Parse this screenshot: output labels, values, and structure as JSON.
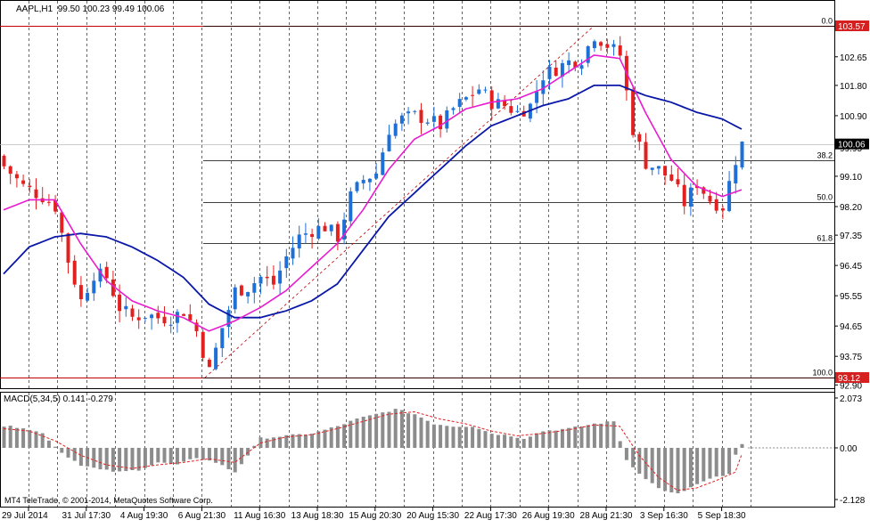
{
  "header": {
    "symbol": "AAPL,H1",
    "ohlc": "99.50 100.23 99.49 100.06"
  },
  "macd_header": "MACD(5,34,5) 0.141 -0.279",
  "copyright": "MT4 TeleTrade, © 2001-2014, MetaQuotes Software Corp.",
  "colors": {
    "background": "#ffffff",
    "candle_up": "#1e6fd6",
    "candle_down": "#e32020",
    "ma_fast": "#e81ccf",
    "ma_slow": "#0a18a8",
    "fibo": "#000000",
    "fibo_extreme": "#c00000",
    "grid": "#000000",
    "macd_hist": "#8c8c8c",
    "macd_signal": "#e32020",
    "current_price_bg": "#000000",
    "extreme_label_bg": "#d62020"
  },
  "chart_data": [
    {
      "type": "candlestick",
      "title": "AAPL,H1",
      "ylim": [
        93.12,
        104.2
      ],
      "y_ticks": [
        "102.65",
        "101.80",
        "100.90",
        "99.95",
        "99.10",
        "98.20",
        "97.35",
        "96.45",
        "95.55",
        "94.65",
        "93.75",
        "92.90"
      ],
      "current_price": "100.06",
      "fibo_high": "103.57",
      "fibo_low": "93.12",
      "fibo_levels": [
        {
          "label": "0.0",
          "value": 103.57
        },
        {
          "label": "38.2",
          "value": 99.58
        },
        {
          "label": "50.0",
          "value": 98.345
        },
        {
          "label": "61.8",
          "value": 97.11
        },
        {
          "label": "100.0",
          "value": 93.12
        }
      ],
      "x_labels": [
        "29 Jul 2014",
        "31 Jul 17:30",
        "4 Aug 19:30",
        "6 Aug 21:30",
        "11 Aug 16:30",
        "13 Aug 18:30",
        "15 Aug 20:30",
        "20 Aug 15:30",
        "22 Aug 17:30",
        "26 Aug 19:30",
        "28 Aug 21:30",
        "3 Sep 16:30",
        "5 Sep 18:30"
      ],
      "x_label_pos": [
        0,
        9,
        18,
        27,
        36,
        45,
        54,
        63,
        72,
        81,
        90,
        99,
        108
      ],
      "bar_count": 116,
      "close_anchors": [
        [
          0,
          99.4
        ],
        [
          3,
          98.8
        ],
        [
          6,
          98.5
        ],
        [
          8,
          98.2
        ],
        [
          10,
          96.6
        ],
        [
          12,
          95.4
        ],
        [
          14,
          96.2
        ],
        [
          16,
          96.1
        ],
        [
          18,
          95.2
        ],
        [
          20,
          94.9
        ],
        [
          22,
          95.0
        ],
        [
          24,
          94.9
        ],
        [
          26,
          94.9
        ],
        [
          28,
          95.1
        ],
        [
          30,
          94.5
        ],
        [
          32,
          93.3
        ],
        [
          34,
          94.6
        ],
        [
          36,
          95.7
        ],
        [
          38,
          95.8
        ],
        [
          40,
          96.1
        ],
        [
          42,
          95.9
        ],
        [
          44,
          96.7
        ],
        [
          46,
          97.3
        ],
        [
          48,
          97.5
        ],
        [
          50,
          97.6
        ],
        [
          52,
          97.3
        ],
        [
          54,
          98.5
        ],
        [
          56,
          99.0
        ],
        [
          58,
          99.2
        ],
        [
          60,
          100.5
        ],
        [
          62,
          100.8
        ],
        [
          64,
          100.9
        ],
        [
          66,
          100.8
        ],
        [
          68,
          100.6
        ],
        [
          70,
          101.1
        ],
        [
          72,
          101.4
        ],
        [
          74,
          101.7
        ],
        [
          76,
          101.3
        ],
        [
          78,
          101.2
        ],
        [
          80,
          101.0
        ],
        [
          82,
          101.2
        ],
        [
          84,
          102.1
        ],
        [
          86,
          102.3
        ],
        [
          88,
          102.5
        ],
        [
          90,
          102.6
        ],
        [
          92,
          103.3
        ],
        [
          94,
          103.0
        ],
        [
          96,
          102.7
        ],
        [
          98,
          100.5
        ],
        [
          100,
          99.5
        ],
        [
          102,
          99.3
        ],
        [
          104,
          99.0
        ],
        [
          106,
          98.3
        ],
        [
          108,
          98.9
        ],
        [
          110,
          98.4
        ],
        [
          112,
          98.2
        ],
        [
          114,
          99.6
        ],
        [
          115,
          100.06
        ]
      ],
      "ma_fast": [
        [
          0,
          98.1
        ],
        [
          4,
          98.4
        ],
        [
          8,
          98.4
        ],
        [
          12,
          97.1
        ],
        [
          16,
          96.0
        ],
        [
          20,
          95.4
        ],
        [
          24,
          95.1
        ],
        [
          28,
          94.9
        ],
        [
          32,
          94.5
        ],
        [
          36,
          94.8
        ],
        [
          40,
          95.2
        ],
        [
          44,
          95.7
        ],
        [
          48,
          96.4
        ],
        [
          52,
          97.1
        ],
        [
          56,
          98.1
        ],
        [
          60,
          99.3
        ],
        [
          64,
          100.2
        ],
        [
          68,
          100.6
        ],
        [
          72,
          101.1
        ],
        [
          76,
          101.3
        ],
        [
          80,
          101.4
        ],
        [
          84,
          101.7
        ],
        [
          88,
          102.2
        ],
        [
          92,
          102.7
        ],
        [
          96,
          102.6
        ],
        [
          100,
          101.0
        ],
        [
          104,
          99.6
        ],
        [
          108,
          98.8
        ],
        [
          112,
          98.5
        ],
        [
          115,
          98.7
        ]
      ],
      "ma_slow": [
        [
          0,
          96.2
        ],
        [
          4,
          97.0
        ],
        [
          8,
          97.3
        ],
        [
          12,
          97.4
        ],
        [
          16,
          97.3
        ],
        [
          20,
          97.0
        ],
        [
          24,
          96.6
        ],
        [
          28,
          96.1
        ],
        [
          32,
          95.3
        ],
        [
          36,
          94.9
        ],
        [
          40,
          94.9
        ],
        [
          44,
          95.1
        ],
        [
          48,
          95.4
        ],
        [
          52,
          95.9
        ],
        [
          56,
          96.9
        ],
        [
          60,
          97.9
        ],
        [
          64,
          98.6
        ],
        [
          68,
          99.3
        ],
        [
          72,
          100.0
        ],
        [
          76,
          100.6
        ],
        [
          80,
          100.9
        ],
        [
          84,
          101.2
        ],
        [
          88,
          101.4
        ],
        [
          92,
          101.8
        ],
        [
          96,
          101.8
        ],
        [
          100,
          101.5
        ],
        [
          104,
          101.3
        ],
        [
          108,
          101.0
        ],
        [
          112,
          100.8
        ],
        [
          115,
          100.5
        ]
      ]
    },
    {
      "type": "bar",
      "title": "MACD(5,34,5) 0.141 -0.279",
      "ylim": [
        -2.128,
        2.073
      ],
      "y_ticks": [
        "2.073",
        "0.00",
        "-2.128"
      ],
      "hist_anchors": [
        [
          0,
          0.9
        ],
        [
          3,
          0.85
        ],
        [
          6,
          0.6
        ],
        [
          9,
          -0.2
        ],
        [
          12,
          -0.7
        ],
        [
          15,
          -0.9
        ],
        [
          18,
          -1.0
        ],
        [
          21,
          -0.9
        ],
        [
          24,
          -0.6
        ],
        [
          27,
          -0.7
        ],
        [
          30,
          -0.4
        ],
        [
          33,
          -0.6
        ],
        [
          36,
          -1.0
        ],
        [
          38,
          -0.3
        ],
        [
          40,
          0.4
        ],
        [
          44,
          0.5
        ],
        [
          48,
          0.6
        ],
        [
          52,
          0.9
        ],
        [
          55,
          1.2
        ],
        [
          58,
          1.4
        ],
        [
          61,
          1.6
        ],
        [
          64,
          1.4
        ],
        [
          67,
          1.0
        ],
        [
          70,
          0.9
        ],
        [
          73,
          0.9
        ],
        [
          76,
          0.6
        ],
        [
          79,
          0.5
        ],
        [
          81,
          0.4
        ],
        [
          84,
          0.7
        ],
        [
          88,
          0.8
        ],
        [
          92,
          1.0
        ],
        [
          95,
          1.1
        ],
        [
          97,
          -0.5
        ],
        [
          100,
          -1.3
        ],
        [
          103,
          -1.8
        ],
        [
          105,
          -1.9
        ],
        [
          108,
          -1.5
        ],
        [
          111,
          -1.2
        ],
        [
          113,
          -1.1
        ],
        [
          114,
          -0.3
        ],
        [
          115,
          0.14
        ]
      ],
      "signal_anchors": [
        [
          0,
          0.8
        ],
        [
          4,
          0.7
        ],
        [
          8,
          0.3
        ],
        [
          12,
          -0.3
        ],
        [
          16,
          -0.7
        ],
        [
          20,
          -0.85
        ],
        [
          24,
          -0.7
        ],
        [
          28,
          -0.6
        ],
        [
          32,
          -0.45
        ],
        [
          36,
          -0.6
        ],
        [
          40,
          0.2
        ],
        [
          44,
          0.45
        ],
        [
          48,
          0.55
        ],
        [
          52,
          0.8
        ],
        [
          56,
          1.1
        ],
        [
          60,
          1.4
        ],
        [
          64,
          1.5
        ],
        [
          68,
          1.2
        ],
        [
          72,
          1.0
        ],
        [
          76,
          0.7
        ],
        [
          80,
          0.5
        ],
        [
          84,
          0.6
        ],
        [
          88,
          0.75
        ],
        [
          92,
          0.95
        ],
        [
          96,
          0.9
        ],
        [
          99,
          -0.3
        ],
        [
          102,
          -1.2
        ],
        [
          105,
          -1.75
        ],
        [
          108,
          -1.65
        ],
        [
          111,
          -1.35
        ],
        [
          114,
          -1.0
        ],
        [
          115,
          -0.28
        ]
      ]
    }
  ]
}
